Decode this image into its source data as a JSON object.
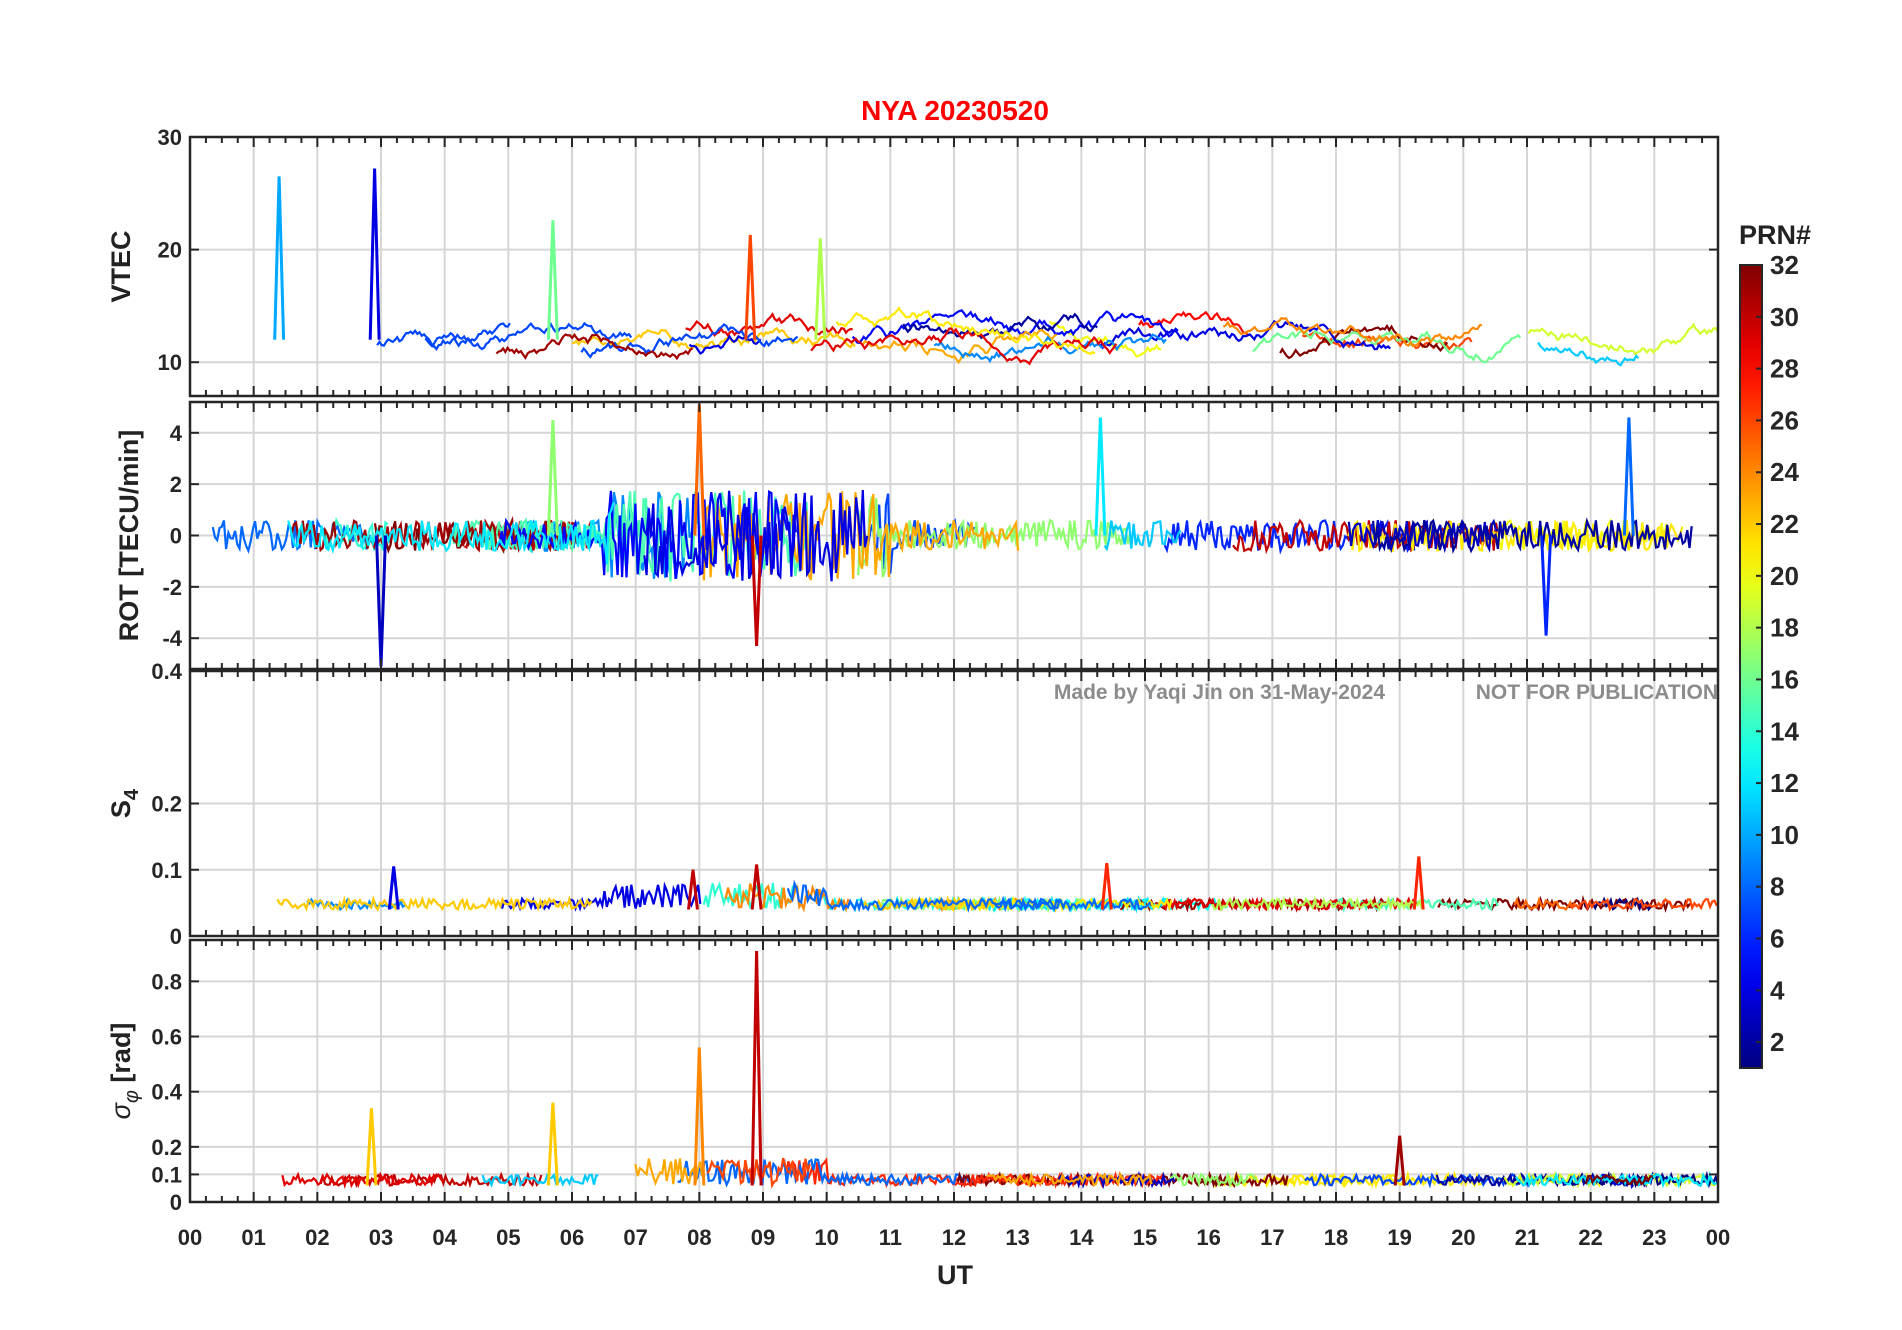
{
  "chart_data": {
    "type": "line",
    "title": "NYA   20230520",
    "xlabel": "UT",
    "x_range": [
      0,
      24
    ],
    "x_ticks": [
      "00",
      "01",
      "02",
      "03",
      "04",
      "05",
      "06",
      "07",
      "08",
      "09",
      "10",
      "11",
      "12",
      "13",
      "14",
      "15",
      "16",
      "17",
      "18",
      "19",
      "20",
      "21",
      "22",
      "23",
      "00"
    ],
    "watermark_left": "Made by Yaqi Jin on 31-May-2024",
    "watermark_right": "NOT FOR PUBLICATION",
    "colorbar": {
      "label": "PRN#",
      "range": [
        1,
        32
      ],
      "ticks": [
        "2",
        "4",
        "6",
        "8",
        "10",
        "12",
        "14",
        "16",
        "18",
        "20",
        "22",
        "24",
        "26",
        "28",
        "30",
        "32"
      ],
      "colormap": "jet"
    },
    "panels": [
      {
        "name": "vtec",
        "ylabel": "VTEC",
        "ylim": [
          7,
          30
        ],
        "yticks": [
          10,
          20,
          30
        ],
        "ytick_labels": [
          "10",
          "20",
          "30"
        ],
        "baseline": 12,
        "noise": 1.2,
        "max_spike": 27,
        "spikes": [
          [
            1.4,
            26.5,
            10
          ],
          [
            2.9,
            27.2,
            4
          ],
          [
            8.8,
            21.3,
            26
          ],
          [
            5.7,
            22.6,
            16
          ],
          [
            9.9,
            21,
            18
          ]
        ]
      },
      {
        "name": "rot",
        "ylabel": "ROT [TECU/min]",
        "ylim": [
          -5.2,
          5.2
        ],
        "yticks": [
          -4,
          -2,
          0,
          2,
          4
        ],
        "ytick_labels": [
          "-4",
          "-2",
          "0",
          "2",
          "4"
        ],
        "baseline": 0,
        "noise": 0.4,
        "max_spike": 5.2,
        "spikes": [
          [
            3.0,
            -5.1,
            3
          ],
          [
            8.0,
            5.1,
            25
          ],
          [
            8.9,
            -4.3,
            30
          ],
          [
            22.6,
            4.6,
            8
          ],
          [
            21.3,
            -3.9,
            6
          ],
          [
            14.3,
            4.6,
            12
          ],
          [
            5.7,
            4.5,
            17
          ]
        ]
      },
      {
        "name": "s4",
        "ylabel": "S4",
        "ylim": [
          0,
          0.4
        ],
        "yticks": [
          0,
          0.1,
          0.2,
          0.4
        ],
        "ytick_labels": [
          "0",
          "0.1",
          "0.2",
          "0.4"
        ],
        "baseline": 0.04,
        "noise": 0.008,
        "max_spike": 0.12,
        "spikes": [
          [
            3.2,
            0.105,
            4
          ],
          [
            8.9,
            0.108,
            30
          ],
          [
            19.3,
            0.12,
            27
          ],
          [
            14.4,
            0.11,
            27
          ],
          [
            7.9,
            0.1,
            30
          ]
        ]
      },
      {
        "name": "sigma_phi",
        "ylabel": "σφ [rad]",
        "ylim": [
          0,
          0.95
        ],
        "yticks": [
          0,
          0.1,
          0.2,
          0.4,
          0.6,
          0.8
        ],
        "ytick_labels": [
          "0",
          "0.1",
          "0.2",
          "0.4",
          "0.6",
          "0.8"
        ],
        "baseline": 0.06,
        "noise": 0.02,
        "max_spike": 0.92,
        "spikes": [
          [
            8.9,
            0.91,
            30
          ],
          [
            8.0,
            0.56,
            24
          ],
          [
            2.85,
            0.34,
            22
          ],
          [
            5.7,
            0.36,
            22
          ],
          [
            19.0,
            0.24,
            31
          ]
        ]
      }
    ]
  }
}
